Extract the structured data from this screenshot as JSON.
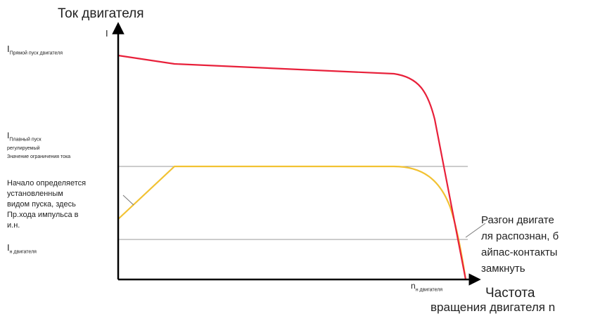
{
  "diagram": {
    "y_axis_title": "Ток двигателя",
    "y_axis_symbol": "I",
    "x_axis_title_line1": "Частота",
    "x_axis_title_line2": "вращения двигателя n",
    "label_i_direct": {
      "main": "I",
      "sub": "Прямой пуск двигателя"
    },
    "label_i_limit": {
      "main": "I",
      "sub": "Плавный пуск",
      "line2": "регулируемый",
      "line3": "Значение ограничения тока"
    },
    "label_i_nominal": {
      "main": "I",
      "sub": "н двигателя"
    },
    "label_n_nominal": {
      "main": "n",
      "sub": "н двигателя"
    },
    "left_note": [
      "Начало определяется",
      "установленным",
      "видом пуска, здесь",
      "Пр.хода импульса в",
      "и.н."
    ],
    "right_note": [
      "Разгон двигате",
      "ля распознан, б",
      "айпас-контакты",
      "замкнуть"
    ],
    "colors": {
      "axis": "#000000",
      "direct_start_curve": "#e8203a",
      "soft_start_curve": "#f2c233",
      "reference_line": "#9a9a9a",
      "callout_line": "#777777"
    }
  }
}
